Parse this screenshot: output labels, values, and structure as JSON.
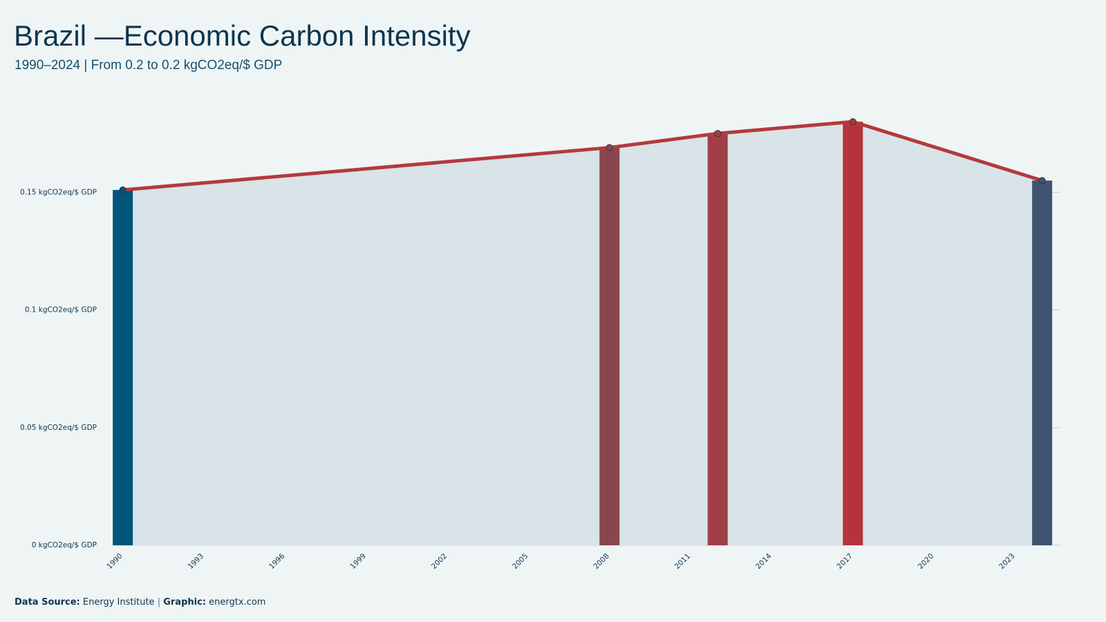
{
  "chart_data": {
    "type": "bar",
    "title": "Brazil —Economic Carbon Intensity",
    "subtitle": "1990–2024 | From 0.2 to 0.2 kgCO2eq/$ GDP",
    "x": [
      1990,
      2008,
      2012,
      2017,
      2024
    ],
    "values": [
      0.151,
      0.169,
      0.175,
      0.18,
      0.155
    ],
    "colors": [
      "#00557a",
      "#8a464f",
      "#a03f46",
      "#b5343a",
      "#3f5470"
    ],
    "line_color": "#b5393c",
    "area_color": "#d8e4e8",
    "xlim": [
      1989.6,
      2024.7
    ],
    "xticks": [
      1990,
      1993,
      1996,
      1999,
      2002,
      2005,
      2008,
      2011,
      2014,
      2017,
      2020,
      2023
    ],
    "ylim": [
      0,
      0.2
    ],
    "yticks": [
      {
        "value": 0,
        "label": "0 kgCO2eq/$ GDP"
      },
      {
        "value": 0.05,
        "label": "0.05 kgCO2eq/$ GDP"
      },
      {
        "value": 0.1,
        "label": "0.1 kgCO2eq/$ GDP"
      },
      {
        "value": 0.15,
        "label": "0.15 kgCO2eq/$ GDP"
      }
    ],
    "grid": true
  },
  "footer": {
    "source_label": "Data Source:",
    "source": "Energy Institute",
    "separator": "|",
    "graphic_label": "Graphic:",
    "graphic": "energtx.com"
  }
}
